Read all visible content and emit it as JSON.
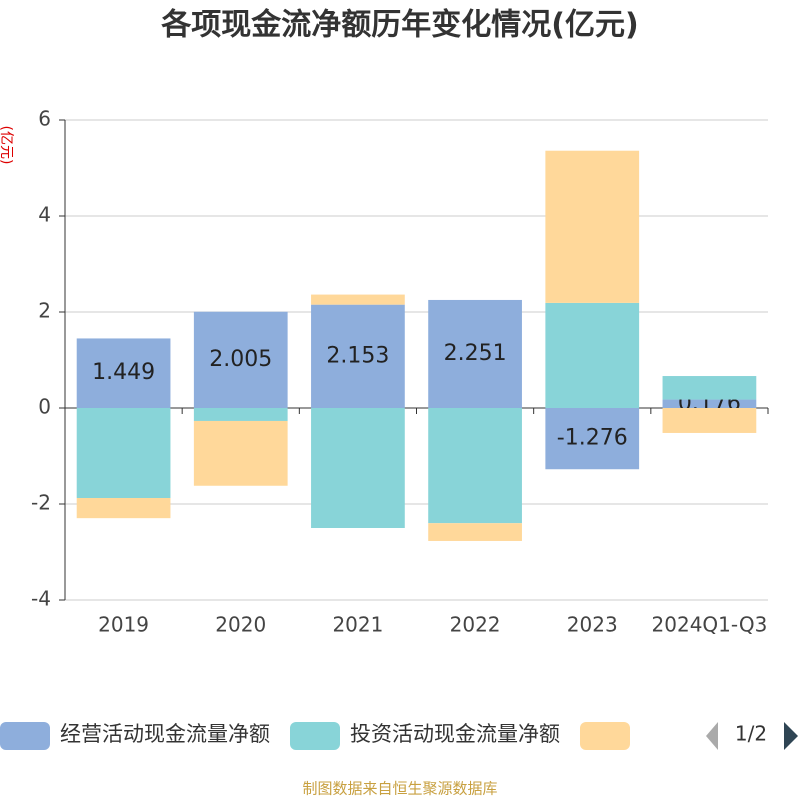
{
  "chart_data": {
    "type": "bar",
    "stacked": true,
    "title": "各项现金流净额历年变化情况(亿元)",
    "y_label": "(亿元)",
    "categories": [
      "2019",
      "2020",
      "2021",
      "2022",
      "2023",
      "2024Q1-Q3"
    ],
    "series": [
      {
        "name": "经营活动现金流量净额",
        "color": "#8eaedc",
        "values": [
          1.449,
          2.005,
          2.153,
          2.251,
          -1.276,
          0.176
        ],
        "show_labels": true
      },
      {
        "name": "投资活动现金流量净额",
        "color": "#88d4d8",
        "values": [
          -1.875,
          -0.27,
          -2.5,
          -2.4,
          2.19,
          0.49
        ]
      },
      {
        "color": "#ffd89a",
        "values": [
          -0.42,
          -1.35,
          0.21,
          -0.37,
          3.17,
          -0.52
        ]
      }
    ],
    "ylim": [
      -4,
      6
    ],
    "yticks": [
      -4,
      -2,
      0,
      2,
      4,
      6
    ],
    "grid": true,
    "legend_page": "1/2",
    "source": "制图数据来自恒生聚源数据库"
  }
}
